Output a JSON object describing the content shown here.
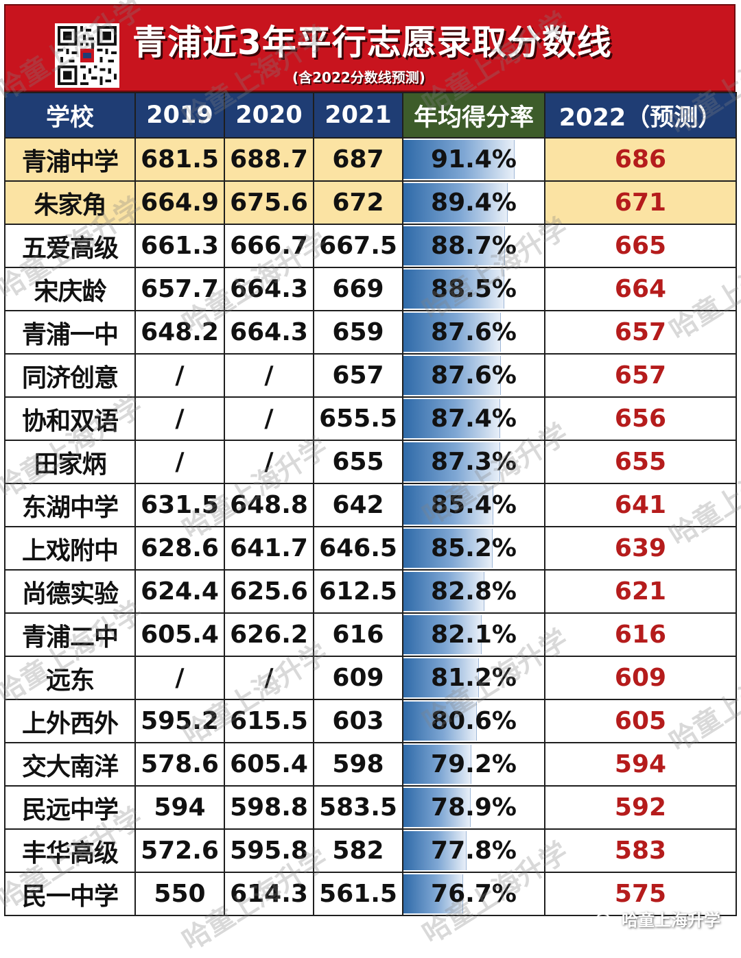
{
  "header": {
    "title": "青浦近3年平行志愿录取分数线",
    "subtitle": "(含2022分数线预测)"
  },
  "table": {
    "columns": [
      "学校",
      "2019",
      "2020",
      "2021",
      "年均得分率",
      "2022（预测）"
    ],
    "rows": [
      {
        "school": "青浦中学",
        "y2019": "681.5",
        "y2020": "688.7",
        "y2021": "687",
        "rate": "91.4%",
        "rate_value": 91.4,
        "pred": "686",
        "highlight": true
      },
      {
        "school": "朱家角",
        "y2019": "664.9",
        "y2020": "675.6",
        "y2021": "672",
        "rate": "89.4%",
        "rate_value": 89.4,
        "pred": "671",
        "highlight": true
      },
      {
        "school": "五爱高级",
        "y2019": "661.3",
        "y2020": "666.7",
        "y2021": "667.5",
        "rate": "88.7%",
        "rate_value": 88.7,
        "pred": "665",
        "highlight": false
      },
      {
        "school": "宋庆龄",
        "y2019": "657.7",
        "y2020": "664.3",
        "y2021": "669",
        "rate": "88.5%",
        "rate_value": 88.5,
        "pred": "664",
        "highlight": false
      },
      {
        "school": "青浦一中",
        "y2019": "648.2",
        "y2020": "664.3",
        "y2021": "659",
        "rate": "87.6%",
        "rate_value": 87.6,
        "pred": "657",
        "highlight": false
      },
      {
        "school": "同济创意",
        "y2019": "/",
        "y2020": "/",
        "y2021": "657",
        "rate": "87.6%",
        "rate_value": 87.6,
        "pred": "657",
        "highlight": false
      },
      {
        "school": "协和双语",
        "y2019": "/",
        "y2020": "/",
        "y2021": "655.5",
        "rate": "87.4%",
        "rate_value": 87.4,
        "pred": "656",
        "highlight": false
      },
      {
        "school": "田家炳",
        "y2019": "/",
        "y2020": "/",
        "y2021": "655",
        "rate": "87.3%",
        "rate_value": 87.3,
        "pred": "655",
        "highlight": false
      },
      {
        "school": "东湖中学",
        "y2019": "631.5",
        "y2020": "648.8",
        "y2021": "642",
        "rate": "85.4%",
        "rate_value": 85.4,
        "pred": "641",
        "highlight": false
      },
      {
        "school": "上戏附中",
        "y2019": "628.6",
        "y2020": "641.7",
        "y2021": "646.5",
        "rate": "85.2%",
        "rate_value": 85.2,
        "pred": "639",
        "highlight": false
      },
      {
        "school": "尚德实验",
        "y2019": "624.4",
        "y2020": "625.6",
        "y2021": "612.5",
        "rate": "82.8%",
        "rate_value": 82.8,
        "pred": "621",
        "highlight": false
      },
      {
        "school": "青浦二中",
        "y2019": "605.4",
        "y2020": "626.2",
        "y2021": "616",
        "rate": "82.1%",
        "rate_value": 82.1,
        "pred": "616",
        "highlight": false
      },
      {
        "school": "远东",
        "y2019": "/",
        "y2020": "/",
        "y2021": "609",
        "rate": "81.2%",
        "rate_value": 81.2,
        "pred": "609",
        "highlight": false
      },
      {
        "school": "上外西外",
        "y2019": "595.2",
        "y2020": "615.5",
        "y2021": "603",
        "rate": "80.6%",
        "rate_value": 80.6,
        "pred": "605",
        "highlight": false
      },
      {
        "school": "交大南洋",
        "y2019": "578.6",
        "y2020": "605.4",
        "y2021": "598",
        "rate": "79.2%",
        "rate_value": 79.2,
        "pred": "594",
        "highlight": false
      },
      {
        "school": "民远中学",
        "y2019": "594",
        "y2020": "598.8",
        "y2021": "583.5",
        "rate": "78.9%",
        "rate_value": 78.9,
        "pred": "592",
        "highlight": false
      },
      {
        "school": "丰华高级",
        "y2019": "572.6",
        "y2020": "595.8",
        "y2021": "582",
        "rate": "77.8%",
        "rate_value": 77.8,
        "pred": "583",
        "highlight": false
      },
      {
        "school": "民一中学",
        "y2019": "550",
        "y2020": "614.3",
        "y2021": "561.5",
        "rate": "76.7%",
        "rate_value": 76.7,
        "pred": "575",
        "highlight": false
      }
    ]
  },
  "watermark": "哈童上海升学",
  "brand": "哈童上海升学",
  "colors": {
    "banner": "#c8141e",
    "header_bg": "#1f3d74",
    "rate_header_bg": "#3d5c2a",
    "highlight_row": "#fbe3a3",
    "prediction_text": "#b51c1c",
    "rate_bar": "#2f6aa8"
  }
}
